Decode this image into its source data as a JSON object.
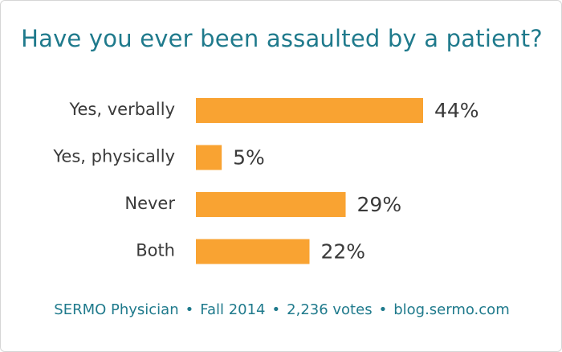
{
  "chart_data": {
    "type": "bar",
    "orientation": "horizontal",
    "title": "Have you ever been assaulted by a patient?",
    "categories": [
      "Yes, verbally",
      "Yes, physically",
      "Never",
      "Both"
    ],
    "values": [
      44,
      5,
      29,
      22
    ],
    "value_labels": [
      "44%",
      "5%",
      "29%",
      "22%"
    ],
    "xlim": [
      0,
      44
    ],
    "bar_color": "#f9a332",
    "grid": false
  },
  "footer": {
    "source": "SERMO Physician",
    "date": "Fall 2014",
    "votes": "2,236 votes",
    "site": "blog.sermo.com",
    "separator": "•"
  }
}
